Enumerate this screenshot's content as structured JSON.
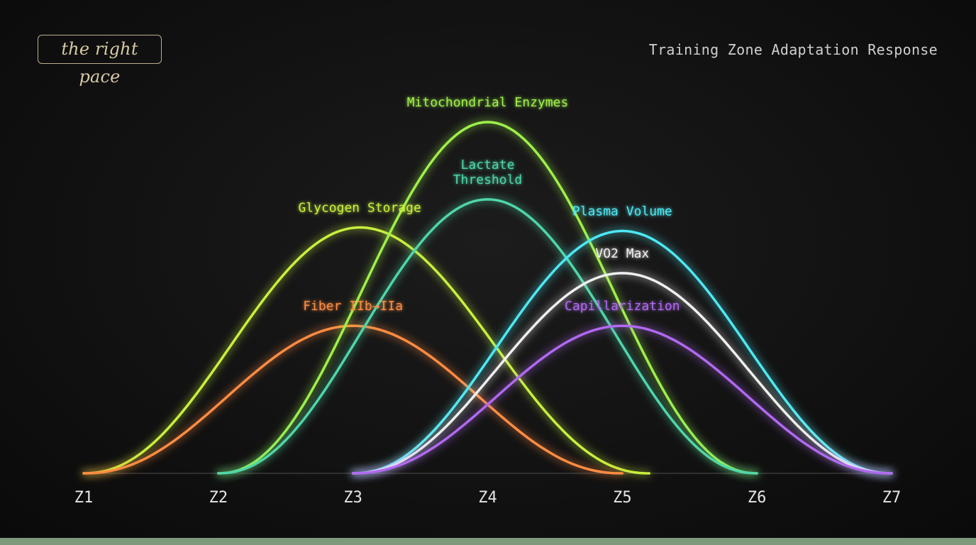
{
  "header": {
    "brand_label": "the right pace",
    "chart_title": "Training Zone Adaptation Response"
  },
  "chart_data": {
    "type": "line",
    "title": "Training Zone Adaptation Response",
    "x_categories": [
      "Z1",
      "Z2",
      "Z3",
      "Z4",
      "Z5",
      "Z6",
      "Z7"
    ],
    "xlim": [
      1,
      7
    ],
    "ylim": [
      0,
      100
    ],
    "grid": false,
    "legend": "inline labels at curve peaks",
    "series": [
      {
        "name": "Glycogen Storage",
        "color": "#c8f03c",
        "peak_zone": 3.05,
        "peak_value": 70,
        "range": [
          1,
          5.2
        ]
      },
      {
        "name": "Fiber IIb→IIa",
        "color": "#ff8c42",
        "peak_zone": 3.0,
        "peak_value": 42,
        "range": [
          1,
          5.0
        ]
      },
      {
        "name": "Mitochondrial Enzymes",
        "color": "#9ef04a",
        "peak_zone": 4.0,
        "peak_value": 100,
        "range": [
          2,
          6.0
        ]
      },
      {
        "name": "Lactate Threshold",
        "color": "#4fd6a8",
        "peak_zone": 4.0,
        "peak_value": 78,
        "range": [
          2,
          6.0
        ]
      },
      {
        "name": "Plasma Volume",
        "color": "#4ee8f2",
        "peak_zone": 5.0,
        "peak_value": 69,
        "range": [
          3,
          7
        ]
      },
      {
        "name": "VO2 Max",
        "color": "#f0f0f0",
        "peak_zone": 5.0,
        "peak_value": 57,
        "range": [
          3,
          7
        ]
      },
      {
        "name": "Capillarization",
        "color": "#b069f0",
        "peak_zone": 5.0,
        "peak_value": 42,
        "range": [
          3,
          7
        ]
      }
    ]
  }
}
